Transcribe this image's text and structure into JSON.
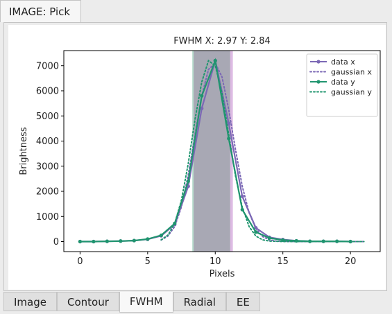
{
  "window": {
    "title": "IMAGE: Pick"
  },
  "tabs": [
    {
      "label": "Image",
      "active": false
    },
    {
      "label": "Contour",
      "active": false
    },
    {
      "label": "FWHM",
      "active": true
    },
    {
      "label": "Radial",
      "active": false
    },
    {
      "label": "EE",
      "active": false
    }
  ],
  "colors": {
    "data_x": "#7b68b5",
    "data_y": "#20956f",
    "band_x": "#d9b3e0",
    "band_y": "#b0d8c8"
  },
  "chart_data": {
    "type": "line",
    "title": "FWHM X: 2.97  Y: 2.84",
    "xlabel": "Pixels",
    "ylabel": "Brightness",
    "xlim": [
      -1.2,
      22.2
    ],
    "ylim": [
      -400,
      7600
    ],
    "xticks": [
      0,
      5,
      10,
      15,
      20
    ],
    "yticks": [
      0,
      1000,
      2000,
      3000,
      4000,
      5000,
      6000,
      7000
    ],
    "legend_position": "top-right",
    "fwhm_bands": [
      {
        "name": "data x",
        "from": 8.4,
        "to": 11.3
      },
      {
        "name": "data y",
        "from": 8.3,
        "to": 11.1
      }
    ],
    "series": [
      {
        "name": "data x",
        "style": "solid-marker",
        "x": [
          0,
          1,
          2,
          3,
          4,
          5,
          6,
          7,
          8,
          9,
          10,
          11,
          12,
          13,
          14,
          15,
          16,
          17,
          18,
          19,
          20
        ],
        "y": [
          0,
          0,
          10,
          20,
          40,
          90,
          230,
          680,
          2200,
          5300,
          7200,
          4700,
          1800,
          550,
          170,
          80,
          30,
          10,
          10,
          10,
          0
        ]
      },
      {
        "name": "gaussian x",
        "style": "dotted",
        "x": [
          6,
          6.5,
          7,
          7.5,
          8,
          8.5,
          9,
          9.5,
          10,
          10.5,
          11,
          11.5,
          12,
          12.5,
          13,
          13.5,
          14,
          14.5,
          15,
          16,
          17,
          18,
          19,
          20,
          21
        ],
        "y": [
          60,
          220,
          600,
          1380,
          2650,
          4250,
          5800,
          6850,
          7100,
          6550,
          5250,
          3650,
          2200,
          1150,
          520,
          200,
          70,
          20,
          10,
          0,
          0,
          0,
          0,
          0,
          0
        ]
      },
      {
        "name": "data y",
        "style": "solid-marker",
        "x": [
          0,
          1,
          2,
          3,
          4,
          5,
          6,
          7,
          8,
          9,
          10,
          11,
          12,
          13,
          14,
          15,
          16,
          17,
          18,
          19,
          20
        ],
        "y": [
          0,
          0,
          10,
          20,
          40,
          100,
          250,
          720,
          2400,
          5800,
          7200,
          4100,
          1270,
          380,
          140,
          60,
          30,
          10,
          10,
          10,
          0
        ]
      },
      {
        "name": "gaussian y",
        "style": "dotted",
        "x": [
          6,
          6.5,
          7,
          7.5,
          8,
          8.5,
          9,
          9.5,
          10,
          10.5,
          11,
          11.5,
          12,
          12.5,
          13,
          13.5,
          14,
          14.5,
          15,
          16,
          17,
          18,
          19,
          20,
          21
        ],
        "y": [
          70,
          260,
          720,
          1650,
          3100,
          4850,
          6350,
          7200,
          7000,
          5900,
          4250,
          2600,
          1370,
          600,
          220,
          70,
          20,
          10,
          0,
          0,
          0,
          0,
          0,
          0,
          0
        ]
      }
    ]
  }
}
